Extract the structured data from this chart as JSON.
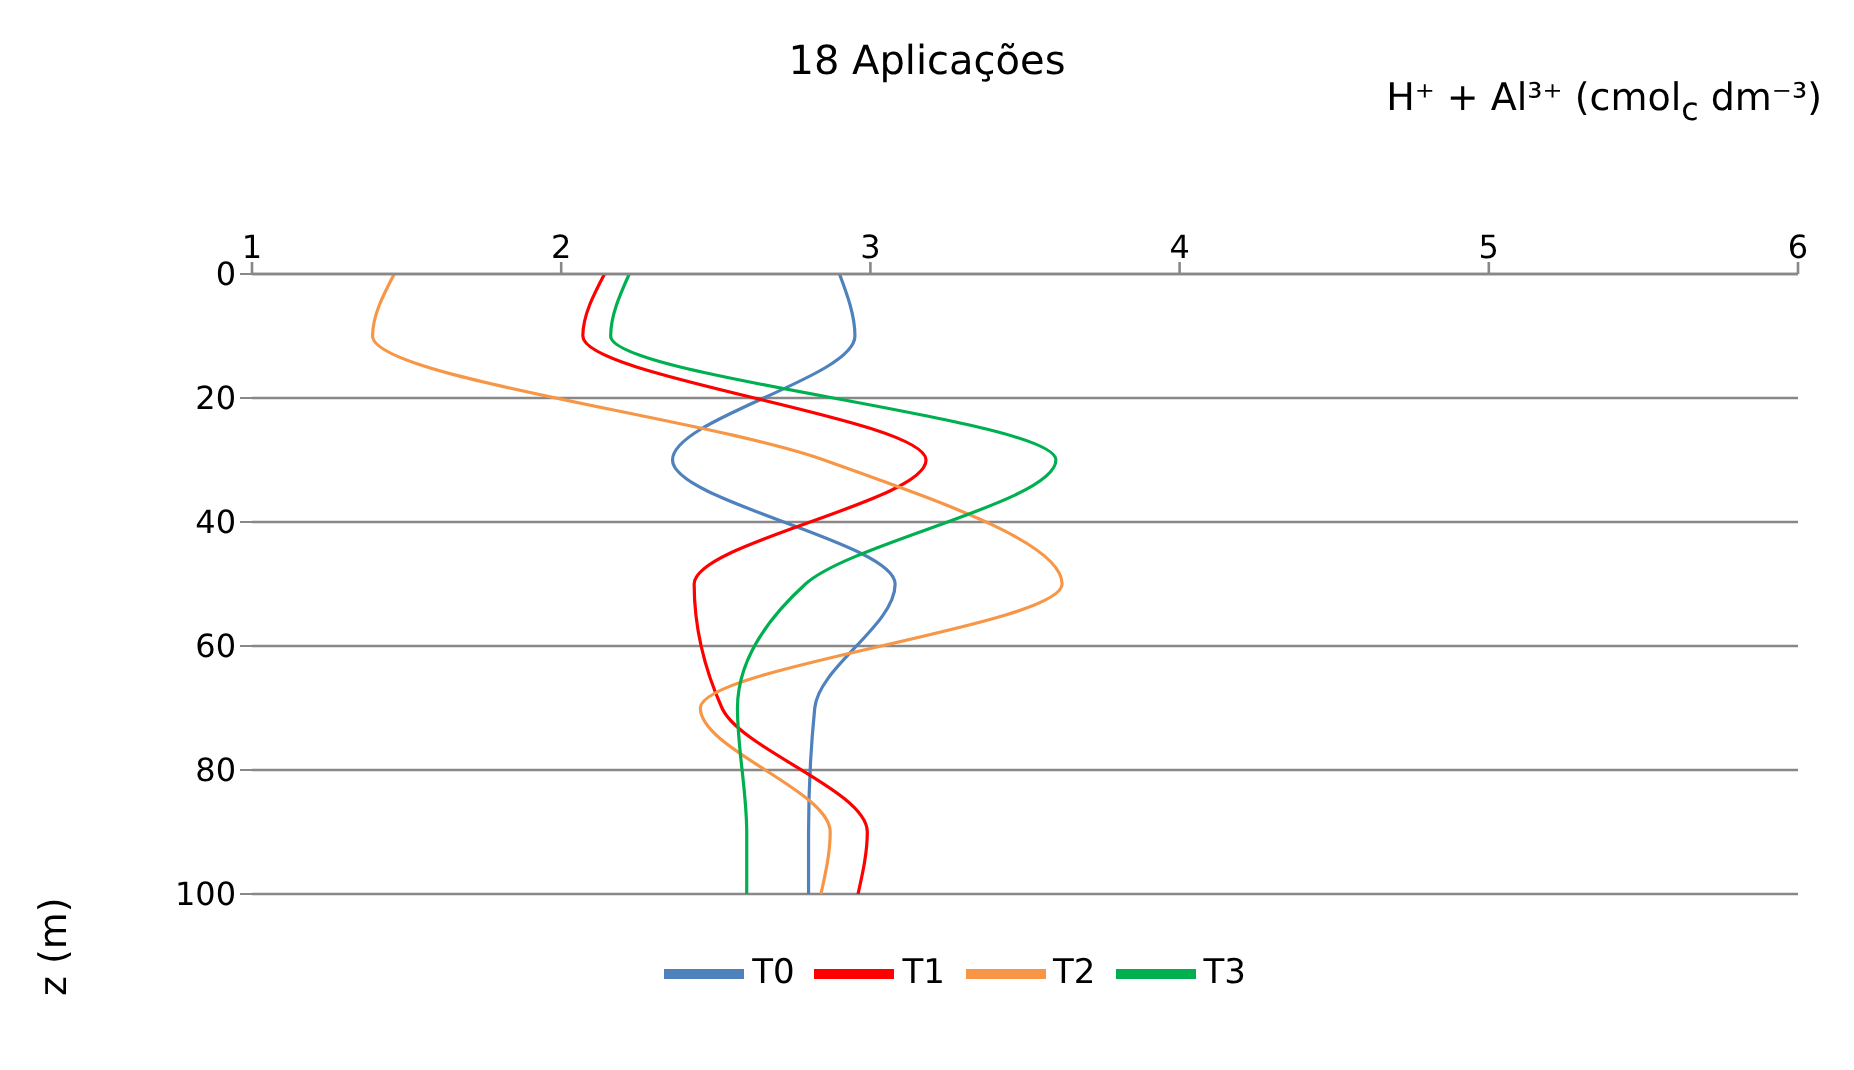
{
  "chart_data": {
    "type": "line",
    "title": "18 Aplicações",
    "xlabel": "H⁺ + Al³⁺ (cmol$_{c}$ dm⁻³)",
    "ylabel": "z (m)",
    "xlim": [
      1,
      6
    ],
    "xticks": [
      1,
      2,
      3,
      4,
      5,
      6
    ],
    "ylim": [
      100,
      0
    ],
    "yticks": [
      0,
      20,
      40,
      60,
      80,
      100
    ],
    "grid": "y",
    "legend": "bottom",
    "marker": "none",
    "line_style": "solid",
    "series": [
      {
        "name": "T0",
        "color": "#4f81bd",
        "x": [
          2.9,
          2.95,
          2.36,
          3.08,
          2.82,
          2.8,
          2.8
        ],
        "values": [
          0,
          10,
          30,
          50,
          70,
          90,
          100
        ]
      },
      {
        "name": "T1",
        "color": "#ff0000",
        "x": [
          2.14,
          2.07,
          3.18,
          2.43,
          2.52,
          2.99,
          2.96
        ],
        "values": [
          0,
          10,
          30,
          50,
          70,
          90,
          100
        ]
      },
      {
        "name": "T2",
        "color": "#f79646",
        "x": [
          1.46,
          1.39,
          2.85,
          3.62,
          2.45,
          2.87,
          2.84
        ],
        "values": [
          0,
          10,
          30,
          50,
          70,
          90,
          100
        ]
      },
      {
        "name": "T3",
        "color": "#00b050",
        "x": [
          2.22,
          2.16,
          3.6,
          2.79,
          2.57,
          2.6,
          2.6
        ],
        "values": [
          0,
          10,
          30,
          50,
          70,
          90,
          100
        ]
      }
    ]
  }
}
